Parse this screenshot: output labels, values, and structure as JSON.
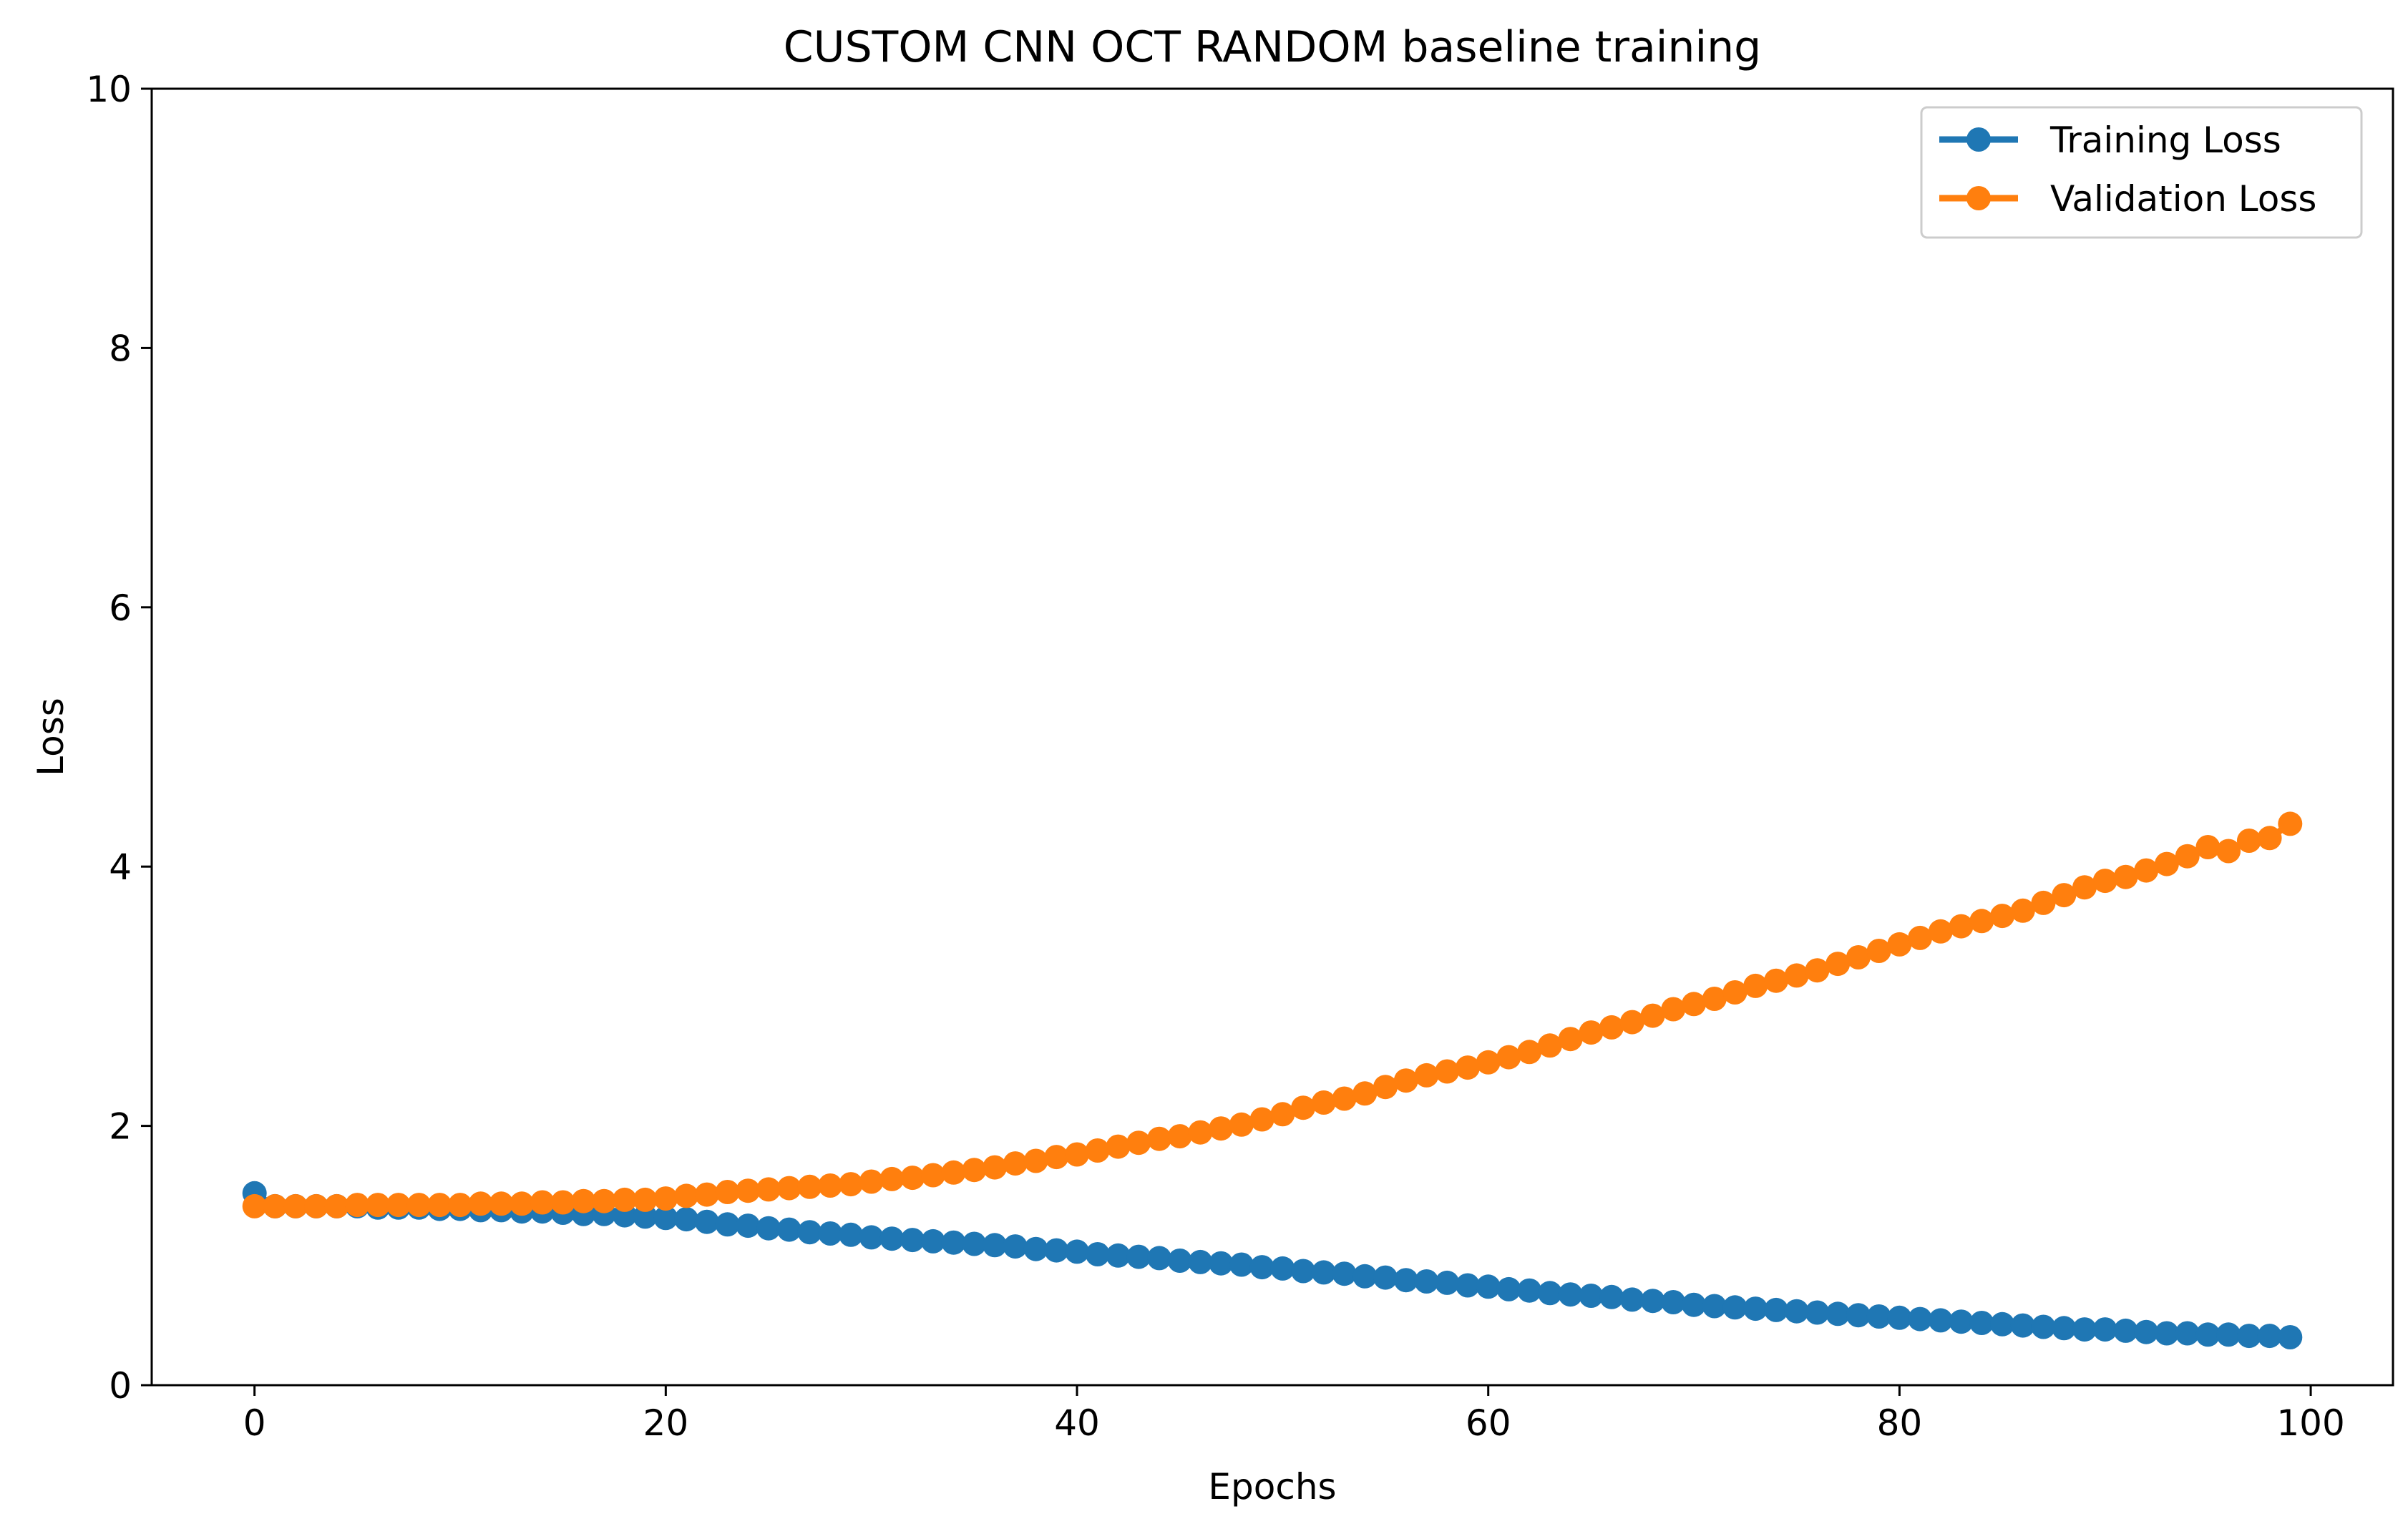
{
  "chart_data": {
    "type": "line",
    "title": "CUSTOM CNN OCT RANDOM baseline training",
    "xlabel": "Epochs",
    "ylabel": "Loss",
    "xlim": [
      -5,
      104
    ],
    "ylim": [
      0,
      10
    ],
    "xticks": [
      0,
      20,
      40,
      60,
      80,
      100
    ],
    "yticks": [
      0,
      2,
      4,
      6,
      8,
      10
    ],
    "grid": false,
    "legend_position": "upper right",
    "series": [
      {
        "name": "Training Loss",
        "color": "#1f77b4",
        "marker": "circle",
        "x": [
          0,
          1,
          2,
          3,
          4,
          5,
          6,
          7,
          8,
          9,
          10,
          11,
          12,
          13,
          14,
          15,
          16,
          17,
          18,
          19,
          20,
          21,
          22,
          23,
          24,
          25,
          26,
          27,
          28,
          29,
          30,
          31,
          32,
          33,
          34,
          35,
          36,
          37,
          38,
          39,
          40,
          41,
          42,
          43,
          44,
          45,
          46,
          47,
          48,
          49,
          50,
          51,
          52,
          53,
          54,
          55,
          56,
          57,
          58,
          59,
          60,
          61,
          62,
          63,
          64,
          65,
          66,
          67,
          68,
          69,
          70,
          71,
          72,
          73,
          74,
          75,
          76,
          77,
          78,
          79,
          80,
          81,
          82,
          83,
          84,
          85,
          86,
          87,
          88,
          89,
          90,
          91,
          92,
          93,
          94,
          95,
          96,
          97,
          98,
          99
        ],
        "y": [
          1.48,
          1.38,
          1.38,
          1.38,
          1.38,
          1.38,
          1.37,
          1.37,
          1.37,
          1.36,
          1.36,
          1.35,
          1.35,
          1.34,
          1.34,
          1.33,
          1.32,
          1.32,
          1.31,
          1.3,
          1.29,
          1.28,
          1.26,
          1.24,
          1.23,
          1.21,
          1.2,
          1.18,
          1.17,
          1.16,
          1.14,
          1.13,
          1.12,
          1.11,
          1.1,
          1.09,
          1.08,
          1.07,
          1.05,
          1.04,
          1.03,
          1.01,
          1.0,
          0.99,
          0.98,
          0.96,
          0.95,
          0.94,
          0.93,
          0.91,
          0.9,
          0.88,
          0.87,
          0.86,
          0.84,
          0.83,
          0.81,
          0.8,
          0.79,
          0.77,
          0.76,
          0.74,
          0.73,
          0.71,
          0.7,
          0.69,
          0.68,
          0.66,
          0.65,
          0.64,
          0.62,
          0.61,
          0.6,
          0.59,
          0.58,
          0.57,
          0.56,
          0.55,
          0.54,
          0.53,
          0.52,
          0.51,
          0.5,
          0.49,
          0.48,
          0.47,
          0.46,
          0.45,
          0.44,
          0.43,
          0.43,
          0.42,
          0.41,
          0.4,
          0.4,
          0.39,
          0.39,
          0.38,
          0.38,
          0.37
        ]
      },
      {
        "name": "Validation Loss",
        "color": "#ff7f0e",
        "marker": "circle",
        "x": [
          0,
          1,
          2,
          3,
          4,
          5,
          6,
          7,
          8,
          9,
          10,
          11,
          12,
          13,
          14,
          15,
          16,
          17,
          18,
          19,
          20,
          21,
          22,
          23,
          24,
          25,
          26,
          27,
          28,
          29,
          30,
          31,
          32,
          33,
          34,
          35,
          36,
          37,
          38,
          39,
          40,
          41,
          42,
          43,
          44,
          45,
          46,
          47,
          48,
          49,
          50,
          51,
          52,
          53,
          54,
          55,
          56,
          57,
          58,
          59,
          60,
          61,
          62,
          63,
          64,
          65,
          66,
          67,
          68,
          69,
          70,
          71,
          72,
          73,
          74,
          75,
          76,
          77,
          78,
          79,
          80,
          81,
          82,
          83,
          84,
          85,
          86,
          87,
          88,
          89,
          90,
          91,
          92,
          93,
          94,
          95,
          96,
          97,
          98,
          99
        ],
        "y": [
          1.38,
          1.38,
          1.38,
          1.38,
          1.38,
          1.39,
          1.39,
          1.39,
          1.39,
          1.39,
          1.39,
          1.4,
          1.4,
          1.4,
          1.41,
          1.41,
          1.42,
          1.42,
          1.43,
          1.43,
          1.44,
          1.46,
          1.47,
          1.49,
          1.5,
          1.51,
          1.52,
          1.53,
          1.54,
          1.55,
          1.57,
          1.59,
          1.6,
          1.62,
          1.64,
          1.66,
          1.68,
          1.71,
          1.73,
          1.76,
          1.78,
          1.81,
          1.84,
          1.87,
          1.9,
          1.92,
          1.95,
          1.98,
          2.01,
          2.05,
          2.09,
          2.14,
          2.18,
          2.21,
          2.25,
          2.3,
          2.35,
          2.39,
          2.42,
          2.45,
          2.49,
          2.53,
          2.57,
          2.62,
          2.67,
          2.72,
          2.76,
          2.8,
          2.85,
          2.9,
          2.94,
          2.98,
          3.03,
          3.08,
          3.12,
          3.16,
          3.2,
          3.25,
          3.3,
          3.35,
          3.4,
          3.45,
          3.5,
          3.54,
          3.58,
          3.62,
          3.66,
          3.72,
          3.78,
          3.84,
          3.89,
          3.92,
          3.97,
          4.02,
          4.08,
          4.15,
          4.12,
          4.2,
          4.22,
          4.33
        ]
      }
    ]
  }
}
